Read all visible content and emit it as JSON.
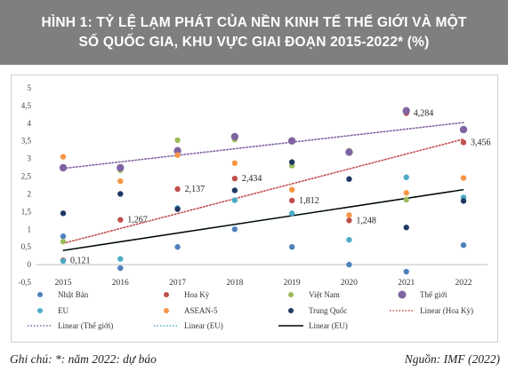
{
  "title": {
    "line1": "HÌNH 1: TỶ LỆ LẠM PHÁT CỦA NỀN KINH TẾ THẾ GIỚI VÀ MỘT",
    "line2": "SỐ QUỐC GIA, KHU VỰC GIAI ĐOẠN 2015-2022* (%)"
  },
  "footer": {
    "note": "Ghi chú: *: năm 2022: dự báo",
    "source": "Nguồn: IMF (2022)"
  },
  "chart_data": {
    "type": "scatter",
    "x": [
      "2015",
      "2016",
      "2017",
      "2018",
      "2019",
      "2020",
      "2021",
      "2022"
    ],
    "ylim": [
      -0.5,
      5
    ],
    "yticks": [
      "-0,5",
      "0",
      "0,5",
      "1",
      "1,5",
      "2",
      "2,5",
      "3",
      "3,5",
      "4",
      "4,5",
      "5"
    ],
    "grid": false,
    "legend_position": "bottom",
    "series": [
      {
        "name": "Nhật Bản",
        "color": "#4f81bd",
        "values": [
          0.8,
          -0.1,
          0.5,
          1.0,
          0.5,
          0.0,
          -0.2,
          0.55
        ]
      },
      {
        "name": "Hoa Kỳ",
        "color": "#c0504d",
        "values": [
          0.121,
          1.267,
          2.137,
          2.434,
          1.812,
          1.248,
          4.284,
          3.456
        ]
      },
      {
        "name": "Việt Nam",
        "color": "#9bbb59",
        "values": [
          0.65,
          2.67,
          3.52,
          3.54,
          2.8,
          3.22,
          1.84,
          3.8
        ]
      },
      {
        "name": "Thế giới",
        "color": "#8064a2",
        "values": [
          2.74,
          2.74,
          3.22,
          3.62,
          3.5,
          3.18,
          4.35,
          3.82
        ]
      },
      {
        "name": "EU",
        "color": "#4bacc6",
        "values": [
          0.1,
          0.16,
          1.6,
          1.82,
          1.45,
          0.7,
          2.47,
          1.9
        ]
      },
      {
        "name": "ASEAN-5",
        "color": "#f79646",
        "values": [
          3.05,
          2.36,
          3.1,
          2.87,
          2.12,
          1.4,
          2.03,
          2.45
        ]
      },
      {
        "name": "Trung Quốc",
        "color": "#1f3864",
        "values": [
          1.45,
          2.0,
          1.57,
          2.1,
          2.9,
          2.42,
          1.05,
          1.8
        ]
      }
    ],
    "data_labels": [
      {
        "series": "Hoa Kỳ",
        "x": "2015",
        "text": "0,121"
      },
      {
        "series": "Hoa Kỳ",
        "x": "2016",
        "text": "1,267"
      },
      {
        "series": "Hoa Kỳ",
        "x": "2017",
        "text": "2,137"
      },
      {
        "series": "Hoa Kỳ",
        "x": "2018",
        "text": "2,434"
      },
      {
        "series": "Hoa Kỳ",
        "x": "2019",
        "text": "1,812"
      },
      {
        "series": "Hoa Kỳ",
        "x": "2020",
        "text": "1,248"
      },
      {
        "series": "Hoa Kỳ",
        "x": "2021",
        "text": "4,284"
      },
      {
        "series": "Hoa Kỳ",
        "x": "2022",
        "text": "3,456"
      }
    ],
    "trendlines": [
      {
        "name": "Linear (Hoa Kỳ)",
        "color": "#c0504d",
        "style": "dotted",
        "start": 0.6,
        "end": 3.55
      },
      {
        "name": "Linear (Thế giới)",
        "color": "#8064a2",
        "style": "dotted",
        "start": 2.72,
        "end": 4.02
      },
      {
        "name": "Linear (EU)",
        "color": "#4bacc6",
        "style": "dotted",
        "start": 0.4,
        "end": 2.12
      },
      {
        "name": "Linear (EU)",
        "color": "#000000",
        "style": "solid",
        "start": 0.4,
        "end": 2.12
      }
    ],
    "legend": [
      {
        "label": "Nhật Bản",
        "type": "dot",
        "color": "#4f81bd"
      },
      {
        "label": "Hoa Kỳ",
        "type": "dot",
        "color": "#c0504d"
      },
      {
        "label": "Việt Nam",
        "type": "dot",
        "color": "#9bbb59"
      },
      {
        "label": "Thế giới",
        "type": "dot",
        "color": "#8064a2"
      },
      {
        "label": "EU",
        "type": "dot",
        "color": "#4bacc6"
      },
      {
        "label": "ASEAN-5",
        "type": "dot",
        "color": "#f79646"
      },
      {
        "label": "Trung Quốc",
        "type": "dot",
        "color": "#1f3864"
      },
      {
        "label": "Linear (Hoa Kỳ)",
        "type": "line",
        "color": "#c0504d",
        "style": "dotted"
      },
      {
        "label": "Linear (Thế giới)",
        "type": "line",
        "color": "#8064a2",
        "style": "dotted"
      },
      {
        "label": "Linear (EU)",
        "type": "line",
        "color": "#4bacc6",
        "style": "dotted"
      },
      {
        "label": "Linear (EU)",
        "type": "line",
        "color": "#000000",
        "style": "solid"
      }
    ]
  }
}
